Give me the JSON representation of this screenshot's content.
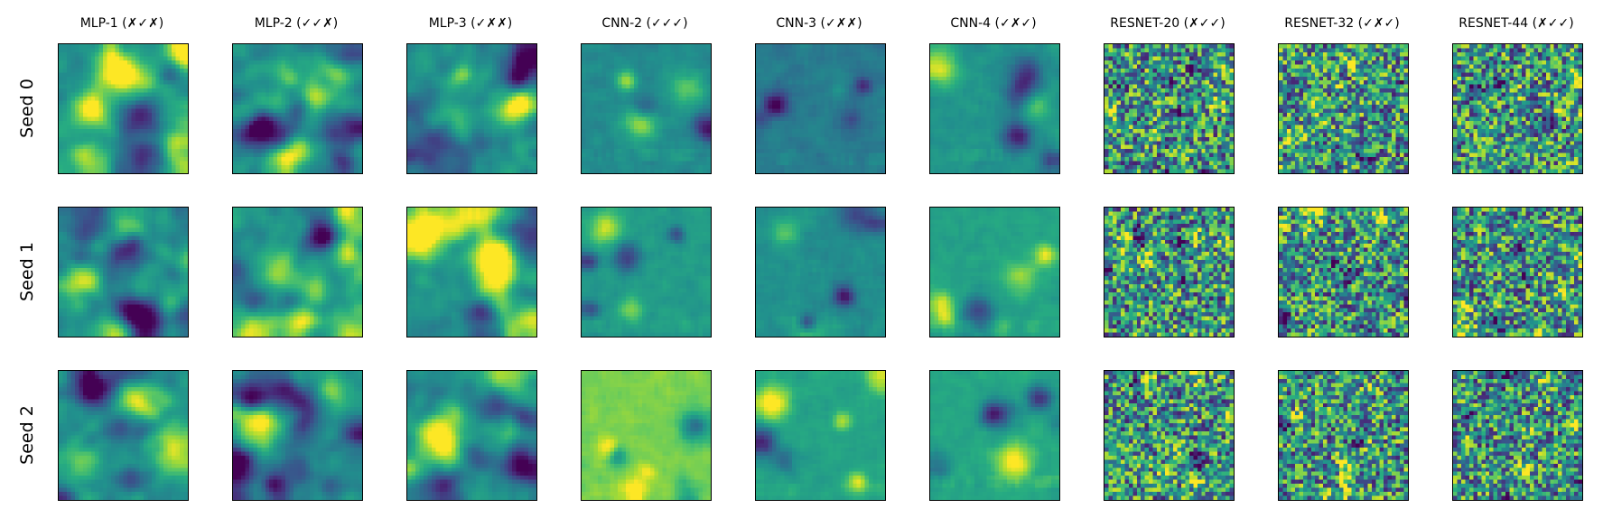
{
  "figure": {
    "columns": [
      {
        "id": "mlp1",
        "title": "MLP-1 (✗✓✗)"
      },
      {
        "id": "mlp2",
        "title": "MLP-2 (✓✓✗)"
      },
      {
        "id": "mlp3",
        "title": "MLP-3 (✓✗✗)"
      },
      {
        "id": "cnn2",
        "title": "CNN-2 (✓✓✓)"
      },
      {
        "id": "cnn3",
        "title": "CNN-3 (✓✗✗)"
      },
      {
        "id": "cnn4",
        "title": "CNN-4 (✓✗✓)"
      },
      {
        "id": "resnet20",
        "title": "RESNET-20 (✗✓✓)"
      },
      {
        "id": "resnet32",
        "title": "RESNET-32 (✓✗✓)"
      },
      {
        "id": "resnet44",
        "title": "RESNET-44 (✗✓✓)"
      }
    ],
    "rows": [
      {
        "id": "seed0",
        "label": "Seed 0"
      },
      {
        "id": "seed1",
        "label": "Seed 1"
      },
      {
        "id": "seed2",
        "label": "Seed 2"
      }
    ],
    "colormap": "viridis",
    "axis_ticks": false
  }
}
